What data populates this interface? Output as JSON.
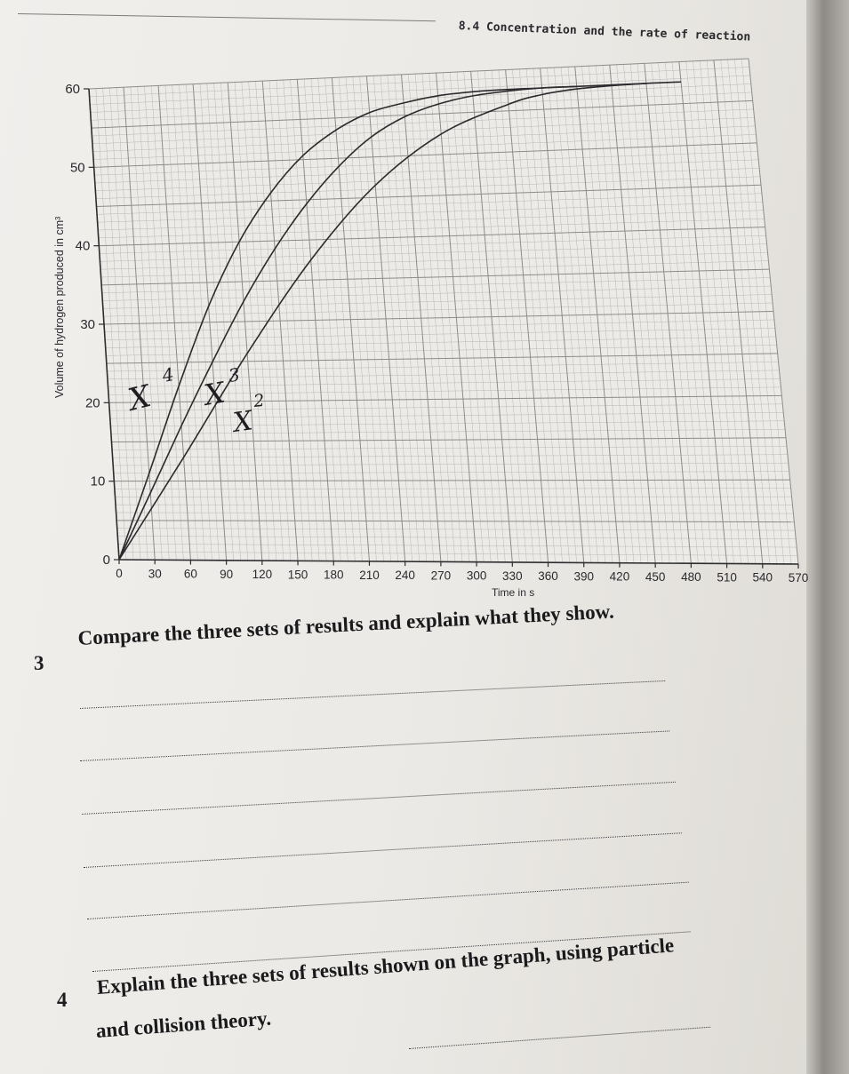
{
  "header": {
    "section_title": "8.4 Concentration and the rate of reaction"
  },
  "chart_data": {
    "type": "line",
    "xlabel": "Time in s",
    "ylabel": "Volume of hydrogen produced in cm³",
    "x_ticks": [
      "0",
      "30",
      "60",
      "90",
      "120",
      "150",
      "180",
      "210",
      "240",
      "270",
      "300",
      "330",
      "360",
      "390",
      "420",
      "450",
      "480",
      "510",
      "540",
      "570"
    ],
    "y_ticks": [
      "0",
      "10",
      "20",
      "30",
      "40",
      "50",
      "60"
    ],
    "xlim": [
      0,
      570
    ],
    "ylim": [
      0,
      60
    ],
    "grid": true,
    "series": [
      {
        "x": [
          0,
          30,
          60,
          90,
          120,
          150,
          180,
          210,
          240,
          270,
          300,
          330,
          360,
          390,
          420
        ],
        "y": [
          0,
          11,
          22,
          32,
          40,
          46,
          50.5,
          53.5,
          55.5,
          56.5,
          57.2,
          57.5,
          57.6,
          57.6,
          57.6
        ]
      },
      {
        "x": [
          0,
          30,
          60,
          90,
          120,
          150,
          180,
          210,
          240,
          270,
          300,
          330,
          360,
          390,
          420,
          450,
          480
        ],
        "y": [
          0,
          8.5,
          17,
          25,
          32.5,
          39,
          44.5,
          49,
          52.5,
          54.8,
          56.2,
          57,
          57.4,
          57.6,
          57.6,
          57.6,
          57.6
        ]
      },
      {
        "x": [
          0,
          60,
          120,
          180,
          240,
          300,
          360,
          390,
          420,
          450,
          480,
          510
        ],
        "y": [
          0,
          13,
          26,
          37.5,
          46.5,
          52.5,
          55.8,
          56.8,
          57.3,
          57.5,
          57.6,
          57.6
        ]
      }
    ],
    "annotations": [
      "X",
      "4",
      "X",
      "3",
      "X",
      "2"
    ]
  },
  "questions": [
    {
      "number": "3",
      "text": "Compare the three sets of results and explain what they show."
    },
    {
      "number": "4",
      "line1": "Explain the three sets of results shown on the graph, using particle",
      "line2": "and collision theory."
    }
  ]
}
